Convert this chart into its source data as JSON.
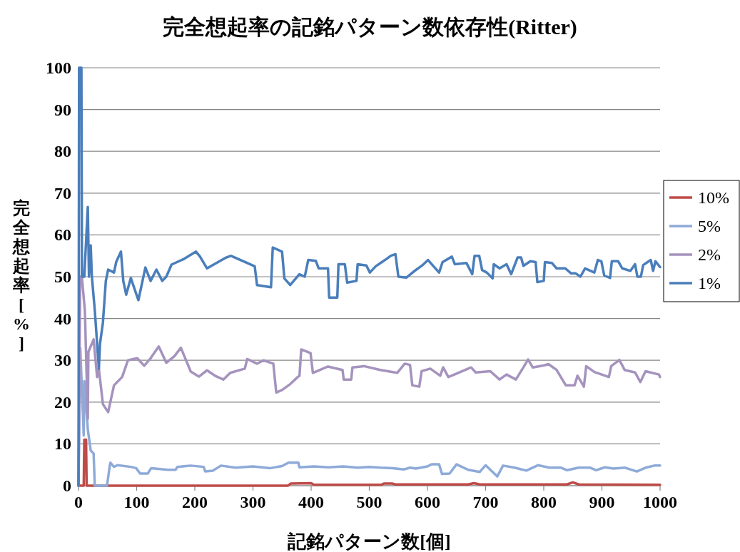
{
  "chart_data": {
    "type": "line",
    "title": "完全想起率の記銘パターン数依存性(Ritter)",
    "xlabel": "記銘パターン数[個]",
    "ylabel": "完全想起率[%]",
    "xlim": [
      0,
      1000
    ],
    "xticks": [
      0,
      100,
      200,
      300,
      400,
      500,
      600,
      700,
      800,
      900,
      1000
    ],
    "ylim": [
      0,
      100
    ],
    "yticks": [
      0,
      10,
      20,
      30,
      40,
      50,
      60,
      70,
      80,
      90,
      100
    ],
    "grid": "y",
    "legend": "right",
    "series": [
      {
        "name": "10%",
        "color": "#be4b48",
        "x": [
          0,
          9,
          10,
          13,
          14,
          360,
          365,
          400,
          405,
          520,
          525,
          540,
          545,
          670,
          680,
          690,
          840,
          850,
          860,
          1000
        ],
        "values": [
          0,
          0,
          11,
          11,
          0,
          0,
          0.5,
          0.6,
          0.2,
          0.2,
          0.5,
          0.5,
          0.3,
          0.3,
          0.6,
          0.3,
          0.3,
          0.8,
          0.3,
          0.2
        ]
      },
      {
        "name": "5%",
        "color": "#8eaad8",
        "x": [
          0,
          3,
          9,
          10,
          16,
          21,
          26,
          28,
          49,
          54,
          55,
          61,
          67,
          90,
          99,
          106,
          119,
          125,
          154,
          167,
          170,
          193,
          215,
          218,
          231,
          245,
          270,
          300,
          330,
          350,
          361,
          378,
          380,
          405,
          430,
          455,
          480,
          500,
          520,
          540,
          560,
          570,
          580,
          600,
          607,
          620,
          625,
          638,
          650,
          670,
          690,
          700,
          720,
          730,
          750,
          770,
          790,
          810,
          830,
          840,
          860,
          880,
          890,
          905,
          920,
          940,
          960,
          975,
          990,
          1000
        ],
        "values": [
          0,
          33,
          12,
          25,
          13.5,
          8.4,
          7.7,
          0,
          0,
          5,
          5.5,
          4.5,
          4.9,
          4.5,
          4.2,
          2.9,
          2.9,
          4.2,
          3.8,
          3.8,
          4.5,
          4.8,
          4.5,
          3.4,
          3.6,
          4.8,
          4.3,
          4.6,
          4.2,
          4.7,
          5.5,
          5.5,
          4.4,
          4.6,
          4.4,
          4.6,
          4.3,
          4.5,
          4.3,
          4.2,
          3.9,
          4.3,
          4.1,
          4.6,
          5.1,
          5.1,
          2.8,
          2.9,
          5.1,
          3.8,
          3.3,
          4.9,
          2.2,
          4.8,
          4.3,
          3.6,
          4.9,
          4.3,
          4.3,
          3.7,
          4.3,
          4.3,
          3.7,
          4.4,
          4.1,
          4.3,
          3.4,
          4.3,
          4.8,
          4.8
        ]
      },
      {
        "name": "2%",
        "color": "#a593be",
        "x": [
          0,
          3,
          6,
          11,
          16,
          17,
          26,
          32,
          35,
          42,
          51,
          61,
          75,
          85,
          101,
          113,
          124,
          138,
          151,
          165,
          176,
          193,
          207,
          221,
          236,
          249,
          261,
          286,
          290,
          307,
          318,
          335,
          340,
          350,
          364,
          377,
          380,
          383,
          399,
          403,
          429,
          454,
          456,
          469,
          471,
          491,
          519,
          548,
          561,
          570,
          574,
          586,
          590,
          605,
          622,
          627,
          636,
          650,
          675,
          683,
          708,
          724,
          736,
          752,
          765,
          773,
          781,
          801,
          808,
          822,
          838,
          853,
          858,
          869,
          873,
          887,
          912,
          916,
          930,
          939,
          957,
          966,
          975,
          998,
          1000
        ],
        "values": [
          0,
          50,
          49.7,
          41.8,
          16,
          32,
          35,
          26,
          28,
          19.5,
          17.6,
          24,
          26,
          30,
          30.5,
          28.7,
          30.5,
          33.3,
          29.4,
          31,
          33,
          27.3,
          26.1,
          27.6,
          26.2,
          25.4,
          27,
          28,
          30.3,
          29.2,
          30,
          29.2,
          22.3,
          22.9,
          24.3,
          26,
          26.3,
          32.6,
          31.7,
          27,
          28.5,
          27.7,
          25.4,
          25.4,
          28.3,
          28.6,
          27.7,
          27,
          29.2,
          28.9,
          24,
          23.7,
          27.4,
          28,
          26.3,
          28.3,
          26,
          26.8,
          28.3,
          27.1,
          27.4,
          25.4,
          26.6,
          25.4,
          28.3,
          30.2,
          28.3,
          28.8,
          29.1,
          27.7,
          24,
          24,
          26.3,
          23.7,
          28.6,
          27.2,
          26,
          28.6,
          30.1,
          27.7,
          27.1,
          24.8,
          27.4,
          26.6,
          26
        ]
      },
      {
        "name": "1%",
        "color": "#4a7ebb",
        "x": [
          0,
          1,
          5,
          6,
          10,
          16,
          18,
          21,
          23,
          28,
          35,
          37,
          42,
          47,
          51,
          61,
          65,
          73,
          77,
          82,
          90,
          98,
          103,
          115,
          124,
          134,
          144,
          151,
          160,
          182,
          202,
          209,
          221,
          254,
          262,
          303,
          307,
          331,
          334,
          350,
          354,
          364,
          380,
          389,
          395,
          408,
          413,
          429,
          431,
          445,
          447,
          458,
          462,
          478,
          480,
          495,
          501,
          511,
          527,
          537,
          545,
          550,
          564,
          579,
          591,
          601,
          620,
          626,
          642,
          647,
          667,
          677,
          681,
          689,
          694,
          702,
          712,
          714,
          724,
          736,
          744,
          755,
          761,
          765,
          777,
          786,
          789,
          800,
          802,
          814,
          822,
          837,
          847,
          855,
          863,
          871,
          887,
          893,
          899,
          904,
          914,
          917,
          928,
          935,
          949,
          957,
          961,
          967,
          971,
          984,
          988,
          992,
          1000
        ],
        "values": [
          0,
          100,
          100,
          50,
          50,
          66.7,
          50,
          57.5,
          50,
          42,
          28,
          34,
          39,
          49,
          51.7,
          51,
          53.6,
          56,
          49,
          45.7,
          49.7,
          46.4,
          44.4,
          52.2,
          49,
          51.7,
          49,
          50,
          52.9,
          54.3,
          56,
          54.8,
          52,
          54.6,
          55,
          52.5,
          48,
          47.5,
          57,
          56,
          49.6,
          48,
          50.6,
          50,
          54,
          53.8,
          52,
          52,
          45,
          45,
          53,
          53,
          48.6,
          49,
          53,
          52.7,
          51,
          52.5,
          54,
          55,
          55.4,
          50,
          49.8,
          51.5,
          52.7,
          54,
          51,
          53.5,
          54.8,
          53,
          53.3,
          50.6,
          55,
          55,
          51.6,
          51,
          49.6,
          53,
          52,
          53,
          50.6,
          54.6,
          54.6,
          52.6,
          53.7,
          53.5,
          48.7,
          49,
          53.5,
          53.3,
          52,
          52,
          50.8,
          50.8,
          50,
          52,
          51,
          54,
          53.7,
          50.3,
          49.7,
          53.7,
          53.7,
          52,
          51.4,
          53,
          50,
          50,
          52.8,
          54,
          51.4,
          53.7,
          52.3
        ]
      }
    ]
  }
}
